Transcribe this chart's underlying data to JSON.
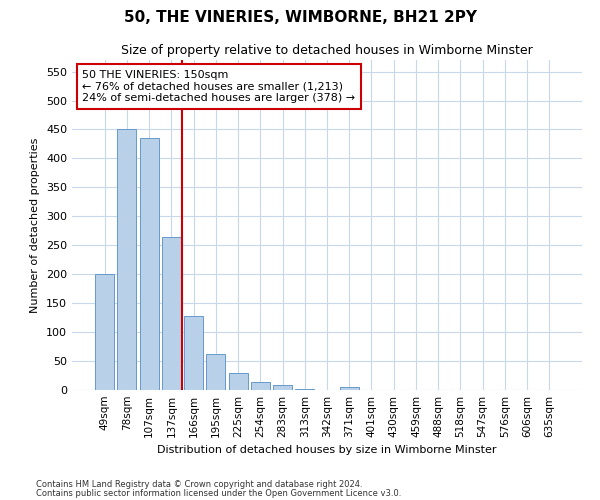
{
  "title": "50, THE VINERIES, WIMBORNE, BH21 2PY",
  "subtitle": "Size of property relative to detached houses in Wimborne Minster",
  "xlabel": "Distribution of detached houses by size in Wimborne Minster",
  "ylabel": "Number of detached properties",
  "categories": [
    "49sqm",
    "78sqm",
    "107sqm",
    "137sqm",
    "166sqm",
    "195sqm",
    "225sqm",
    "254sqm",
    "283sqm",
    "313sqm",
    "342sqm",
    "371sqm",
    "401sqm",
    "430sqm",
    "459sqm",
    "488sqm",
    "518sqm",
    "547sqm",
    "576sqm",
    "606sqm",
    "635sqm"
  ],
  "bar_heights": [
    200,
    450,
    435,
    265,
    127,
    62,
    29,
    13,
    8,
    2,
    0,
    5,
    0,
    0,
    0,
    0,
    0,
    0,
    0,
    0,
    0
  ],
  "bar_color": "#b8d0e8",
  "bar_edge_color": "#6699cc",
  "red_line_color": "#cc0000",
  "annotation_text": "50 THE VINERIES: 150sqm\n← 76% of detached houses are smaller (1,213)\n24% of semi-detached houses are larger (378) →",
  "annotation_box_color": "#ffffff",
  "annotation_box_edge": "#cc0000",
  "ylim": [
    0,
    570
  ],
  "yticks": [
    0,
    50,
    100,
    150,
    200,
    250,
    300,
    350,
    400,
    450,
    500,
    550
  ],
  "footer_line1": "Contains HM Land Registry data © Crown copyright and database right 2024.",
  "footer_line2": "Contains public sector information licensed under the Open Government Licence v3.0.",
  "background_color": "#ffffff",
  "grid_color": "#c8d8e8"
}
